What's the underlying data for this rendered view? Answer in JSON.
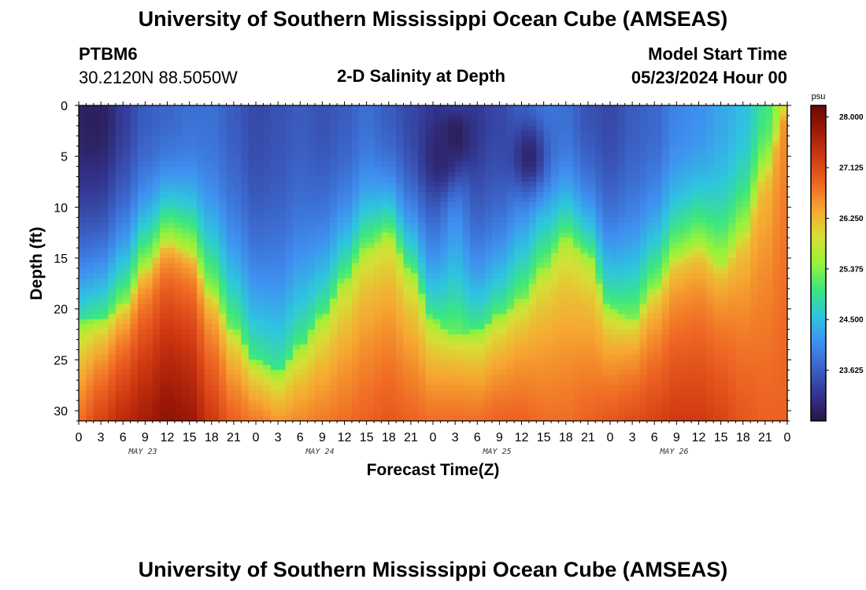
{
  "header": {
    "title": "University of Southern Mississippi Ocean Cube (AMSEAS)",
    "station_id": "PTBM6",
    "coords": "30.2120N  88.5050W",
    "plot_title": "2-D Salinity at Depth",
    "model_start_label": "Model Start Time",
    "model_start_value": "05/23/2024 Hour 00"
  },
  "footer": {
    "title": "University of Southern Mississippi Ocean Cube (AMSEAS)"
  },
  "chart_data": {
    "type": "heatmap",
    "title": "2-D Salinity at Depth",
    "xlabel": "Forecast Time(Z)",
    "ylabel": "Depth (ft)",
    "x_tick_labels": [
      "0",
      "3",
      "6",
      "9",
      "12",
      "15",
      "18",
      "21",
      "0",
      "3",
      "6",
      "9",
      "12",
      "15",
      "18",
      "21",
      "0",
      "3",
      "6",
      "9",
      "12",
      "15",
      "18",
      "21",
      "0",
      "3",
      "6",
      "9",
      "12",
      "15",
      "18",
      "21",
      "0"
    ],
    "date_labels": [
      {
        "label": "MAY 23",
        "hour": 9
      },
      {
        "label": "MAY 24",
        "hour": 33
      },
      {
        "label": "MAY 25",
        "hour": 57
      },
      {
        "label": "MAY 26",
        "hour": 81
      }
    ],
    "xlim_hours": [
      0,
      96
    ],
    "ylim_ft": [
      0,
      31
    ],
    "y_ticks": [
      0,
      5,
      10,
      15,
      20,
      25,
      30
    ],
    "colorbar": {
      "unit": "psu",
      "ticks": [
        "28.000",
        "27.125",
        "26.250",
        "25.375",
        "24.500",
        "23.625"
      ],
      "tick_values": [
        28.0,
        27.125,
        26.25,
        25.375,
        24.5,
        23.625
      ],
      "min": 22.75,
      "max": 28.2,
      "colors": [
        "#2a1545",
        "#32358e",
        "#3b62c7",
        "#3f90f0",
        "#2ec6de",
        "#3ce67f",
        "#98f23a",
        "#d7de36",
        "#f6a932",
        "#ef6824",
        "#d13a12",
        "#a01a07",
        "#6a0a02"
      ]
    },
    "salinity_profile_hours": [
      0,
      3,
      6,
      9,
      12,
      15,
      18,
      21,
      24,
      27,
      30,
      33,
      36,
      39,
      42,
      45,
      48,
      51,
      54,
      57,
      60,
      63,
      66,
      69,
      72,
      75,
      78,
      81,
      84,
      87,
      90,
      93,
      96
    ],
    "halocline_depth_ft": [
      21,
      21,
      19.5,
      16,
      13.5,
      14.5,
      18.5,
      22,
      25,
      26,
      23.5,
      20.5,
      17,
      14,
      12.5,
      16,
      21,
      22.5,
      22,
      20.5,
      19,
      16,
      13,
      14.5,
      20,
      21,
      18,
      15,
      14,
      16,
      13,
      7,
      1
    ],
    "surface_salinity": [
      23.0,
      23.0,
      23.3,
      23.6,
      23.7,
      23.8,
      23.8,
      23.6,
      23.4,
      23.5,
      23.6,
      23.5,
      23.6,
      23.8,
      23.6,
      23.4,
      23.3,
      23.8,
      23.3,
      23.4,
      23.7,
      23.9,
      23.8,
      23.5,
      23.4,
      23.6,
      23.7,
      24.0,
      24.1,
      24.3,
      24.5,
      25.0,
      26.0
    ],
    "bottom_salinity": [
      26.8,
      27.2,
      27.5,
      27.7,
      27.9,
      27.8,
      27.3,
      26.9,
      26.7,
      26.5,
      26.6,
      26.7,
      26.8,
      26.9,
      27.0,
      26.9,
      26.8,
      26.8,
      26.8,
      26.9,
      26.9,
      26.8,
      26.8,
      26.9,
      27.0,
      27.1,
      27.2,
      27.3,
      27.3,
      27.2,
      27.0,
      26.9,
      26.9
    ],
    "fresh_pockets": [
      {
        "hour": 2,
        "depth_ft": 1.5,
        "salinity": 22.9
      },
      {
        "hour": 51,
        "depth_ft": 3,
        "salinity": 22.8
      },
      {
        "hour": 49,
        "depth_ft": 5,
        "salinity": 23.0
      },
      {
        "hour": 61,
        "depth_ft": 5,
        "salinity": 23.0
      }
    ]
  }
}
